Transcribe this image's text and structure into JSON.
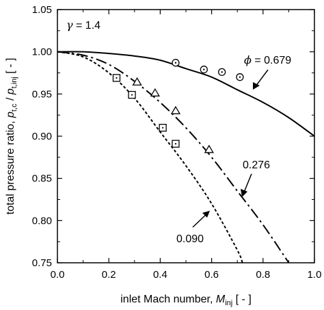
{
  "chart_data": {
    "type": "line",
    "xlabel": {
      "prefix": "inlet Mach number, ",
      "symbol": "M",
      "subscript": "inj",
      "suffix": " [ - ]"
    },
    "ylabel": {
      "prefix": "total pressure ratio, ",
      "symbol1": "p",
      "subscript1": "t,c",
      "sep": " / ",
      "symbol2": "p",
      "subscript2": "t,inj",
      "suffix": " [ - ]"
    },
    "xlim": [
      0.0,
      1.0
    ],
    "ylim": [
      0.75,
      1.05
    ],
    "xticks": [
      "0.0",
      "0.2",
      "0.4",
      "0.6",
      "0.8",
      "1.0"
    ],
    "yticks": [
      "0.75",
      "0.80",
      "0.85",
      "0.90",
      "0.95",
      "1.00",
      "1.05"
    ],
    "gamma_label": {
      "symbol": "γ",
      "text": " = 1.4"
    },
    "series": [
      {
        "label": "ϕ = 0.679",
        "label_symbol": "ϕ",
        "label_value": " = 0.679",
        "style": "solid",
        "x": [
          0.0,
          0.1,
          0.2,
          0.3,
          0.4,
          0.5,
          0.6,
          0.7,
          0.8,
          0.9,
          1.0
        ],
        "y": [
          1.0,
          1.0,
          0.998,
          0.995,
          0.99,
          0.98,
          0.97,
          0.955,
          0.94,
          0.922,
          0.9
        ],
        "markers": {
          "shape": "circle",
          "x": [
            0.46,
            0.57,
            0.64,
            0.71
          ],
          "y": [
            0.987,
            0.979,
            0.976,
            0.97
          ]
        }
      },
      {
        "label": "0.276",
        "style": "dashdot",
        "x": [
          0.0,
          0.1,
          0.2,
          0.3,
          0.4,
          0.5,
          0.6,
          0.7,
          0.8,
          0.9
        ],
        "y": [
          1.0,
          0.996,
          0.985,
          0.965,
          0.94,
          0.91,
          0.875,
          0.835,
          0.795,
          0.75
        ],
        "markers": {
          "shape": "triangle",
          "x": [
            0.31,
            0.38,
            0.46,
            0.59
          ],
          "y": [
            0.964,
            0.951,
            0.93,
            0.884
          ]
        }
      },
      {
        "label": "0.090",
        "style": "dotted",
        "x": [
          0.0,
          0.1,
          0.2,
          0.3,
          0.4,
          0.5,
          0.6,
          0.7,
          0.72
        ],
        "y": [
          1.0,
          0.994,
          0.975,
          0.945,
          0.905,
          0.865,
          0.82,
          0.765,
          0.75
        ],
        "markers": {
          "shape": "square",
          "x": [
            0.23,
            0.29,
            0.41,
            0.46
          ],
          "y": [
            0.969,
            0.949,
            0.91,
            0.891
          ]
        }
      }
    ]
  }
}
